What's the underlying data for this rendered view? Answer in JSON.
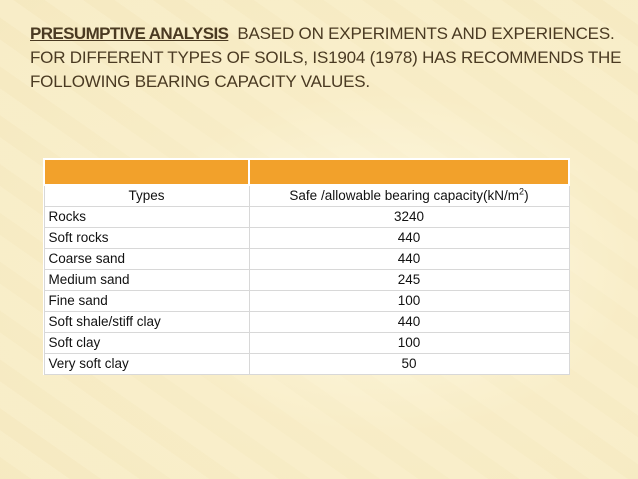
{
  "slide": {
    "title_bold": "PRESUMPTIVE ANALYSIS",
    "title_line1_rest": "BASED ON EXPERIMENTS AND EXPERIENCES.",
    "title_line2": "FOR DIFFERENT TYPES OF SOILS, IS1904 (1978) HAS RECOMMENDS THE",
    "title_line3": "FOLLOWING BEARING CAPACITY VALUES."
  },
  "table": {
    "header_types": "Types",
    "header_capacity": "Safe /allowable bearing capacity(kN/m",
    "header_capacity_sup": "2",
    "header_capacity_end": ")",
    "rows": [
      {
        "type": "Rocks",
        "value": "3240"
      },
      {
        "type": "Soft rocks",
        "value": "440"
      },
      {
        "type": "Coarse sand",
        "value": "440"
      },
      {
        "type": "Medium sand",
        "value": "245"
      },
      {
        "type": "Fine sand",
        "value": "100"
      },
      {
        "type": "Soft shale/stiff clay",
        "value": "440"
      },
      {
        "type": "Soft clay",
        "value": "100"
      },
      {
        "type": "Very soft clay",
        "value": "50"
      }
    ]
  },
  "colors": {
    "header_bar": "#f2a12b",
    "background": "#f7ecc6",
    "title_text": "#4a3a22"
  }
}
